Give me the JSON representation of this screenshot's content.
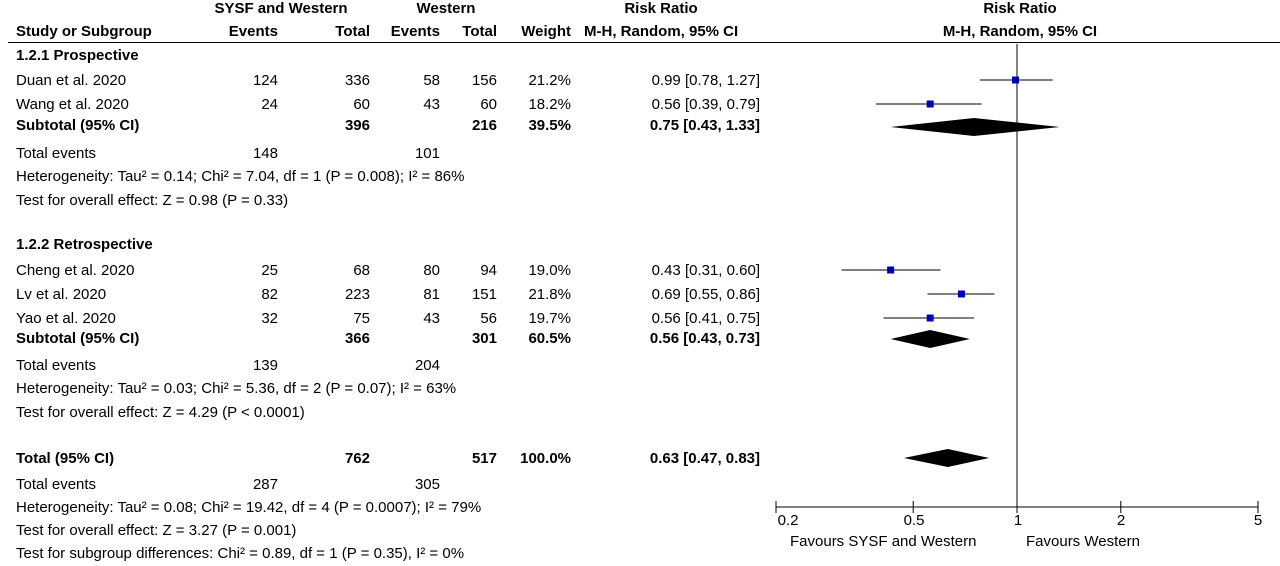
{
  "header": {
    "group1": "SYSF and Western",
    "group2": "Western",
    "rr_col": "Risk Ratio",
    "rr_plot": "Risk Ratio",
    "study_col": "Study or Subgroup",
    "events1": "Events",
    "total1": "Total",
    "events2": "Events",
    "total2": "Total",
    "weight": "Weight",
    "method_col": "M-H, Random, 95% CI",
    "method_plot": "M-H, Random, 95% CI"
  },
  "subgroups": [
    {
      "title": "1.2.1 Prospective",
      "studies": [
        {
          "name": "Duan et al. 2020",
          "e1": "124",
          "t1": "336",
          "e2": "58",
          "t2": "156",
          "weight": "21.2%",
          "ci": "0.99 [0.78, 1.27]"
        },
        {
          "name": "Wang et al. 2020",
          "e1": "24",
          "t1": "60",
          "e2": "43",
          "t2": "60",
          "weight": "18.2%",
          "ci": "0.56 [0.39, 0.79]"
        }
      ],
      "subtotal": {
        "label": "Subtotal (95% CI)",
        "t1": "396",
        "t2": "216",
        "weight": "39.5%",
        "ci": "0.75 [0.43, 1.33]"
      },
      "events": {
        "label": "Total events",
        "e1": "148",
        "e2": "101"
      },
      "heterogeneity": "Heterogeneity: Tau² = 0.14; Chi² = 7.04, df = 1 (P = 0.008); I² = 86%",
      "overall": "Test for overall effect: Z = 0.98 (P = 0.33)"
    },
    {
      "title": "1.2.2 Retrospective",
      "studies": [
        {
          "name": "Cheng et al. 2020",
          "e1": "25",
          "t1": "68",
          "e2": "80",
          "t2": "94",
          "weight": "19.0%",
          "ci": "0.43 [0.31, 0.60]"
        },
        {
          "name": "Lv et al. 2020",
          "e1": "82",
          "t1": "223",
          "e2": "81",
          "t2": "151",
          "weight": "21.8%",
          "ci": "0.69 [0.55, 0.86]"
        },
        {
          "name": "Yao et al. 2020",
          "e1": "32",
          "t1": "75",
          "e2": "43",
          "t2": "56",
          "weight": "19.7%",
          "ci": "0.56 [0.41, 0.75]"
        }
      ],
      "subtotal": {
        "label": "Subtotal (95% CI)",
        "t1": "366",
        "t2": "301",
        "weight": "60.5%",
        "ci": "0.56 [0.43, 0.73]"
      },
      "events": {
        "label": "Total events",
        "e1": "139",
        "e2": "204"
      },
      "heterogeneity": "Heterogeneity: Tau² = 0.03; Chi² = 5.36, df = 2 (P = 0.07); I² = 63%",
      "overall": "Test for overall effect: Z = 4.29 (P < 0.0001)"
    }
  ],
  "total": {
    "label": "Total (95% CI)",
    "t1": "762",
    "t2": "517",
    "weight": "100.0%",
    "ci": "0.63 [0.47, 0.83]",
    "events": {
      "label": "Total events",
      "e1": "287",
      "e2": "305"
    },
    "heterogeneity": "Heterogeneity: Tau² = 0.08; Chi² = 19.42, df = 4 (P = 0.0007); I² = 79%",
    "overall": "Test for overall effect: Z = 3.27 (P = 0.001)",
    "subgroup_diff": "Test for subgroup differences: Chi² = 0.89, df = 1 (P = 0.35), I² = 0%"
  },
  "axis": {
    "ticks": [
      "0.2",
      "0.5",
      "1",
      "2",
      "5"
    ],
    "favours_left": "Favours SYSF and Western",
    "favours_right": "Favours Western"
  },
  "colors": {
    "study_marker": "#0000b4",
    "diamond": "#000000"
  },
  "chart_data": {
    "type": "forest",
    "scale": "log",
    "xlim": [
      0.2,
      5
    ],
    "xticks": [
      0.2,
      0.5,
      1,
      2,
      5
    ],
    "reference_line": 1,
    "studies": [
      {
        "name": "Duan et al. 2020",
        "rr": 0.99,
        "lo": 0.78,
        "hi": 1.27
      },
      {
        "name": "Wang et al. 2020",
        "rr": 0.56,
        "lo": 0.39,
        "hi": 0.79
      },
      {
        "name": "Cheng et al. 2020",
        "rr": 0.43,
        "lo": 0.31,
        "hi": 0.6
      },
      {
        "name": "Lv et al. 2020",
        "rr": 0.69,
        "lo": 0.55,
        "hi": 0.86
      },
      {
        "name": "Yao et al. 2020",
        "rr": 0.56,
        "lo": 0.41,
        "hi": 0.75
      }
    ],
    "pooled": [
      {
        "name": "Subtotal 1.2.1 Prospective",
        "rr": 0.75,
        "lo": 0.43,
        "hi": 1.33
      },
      {
        "name": "Subtotal 1.2.2 Retrospective",
        "rr": 0.56,
        "lo": 0.43,
        "hi": 0.73
      },
      {
        "name": "Total",
        "rr": 0.63,
        "lo": 0.47,
        "hi": 0.83
      }
    ]
  }
}
